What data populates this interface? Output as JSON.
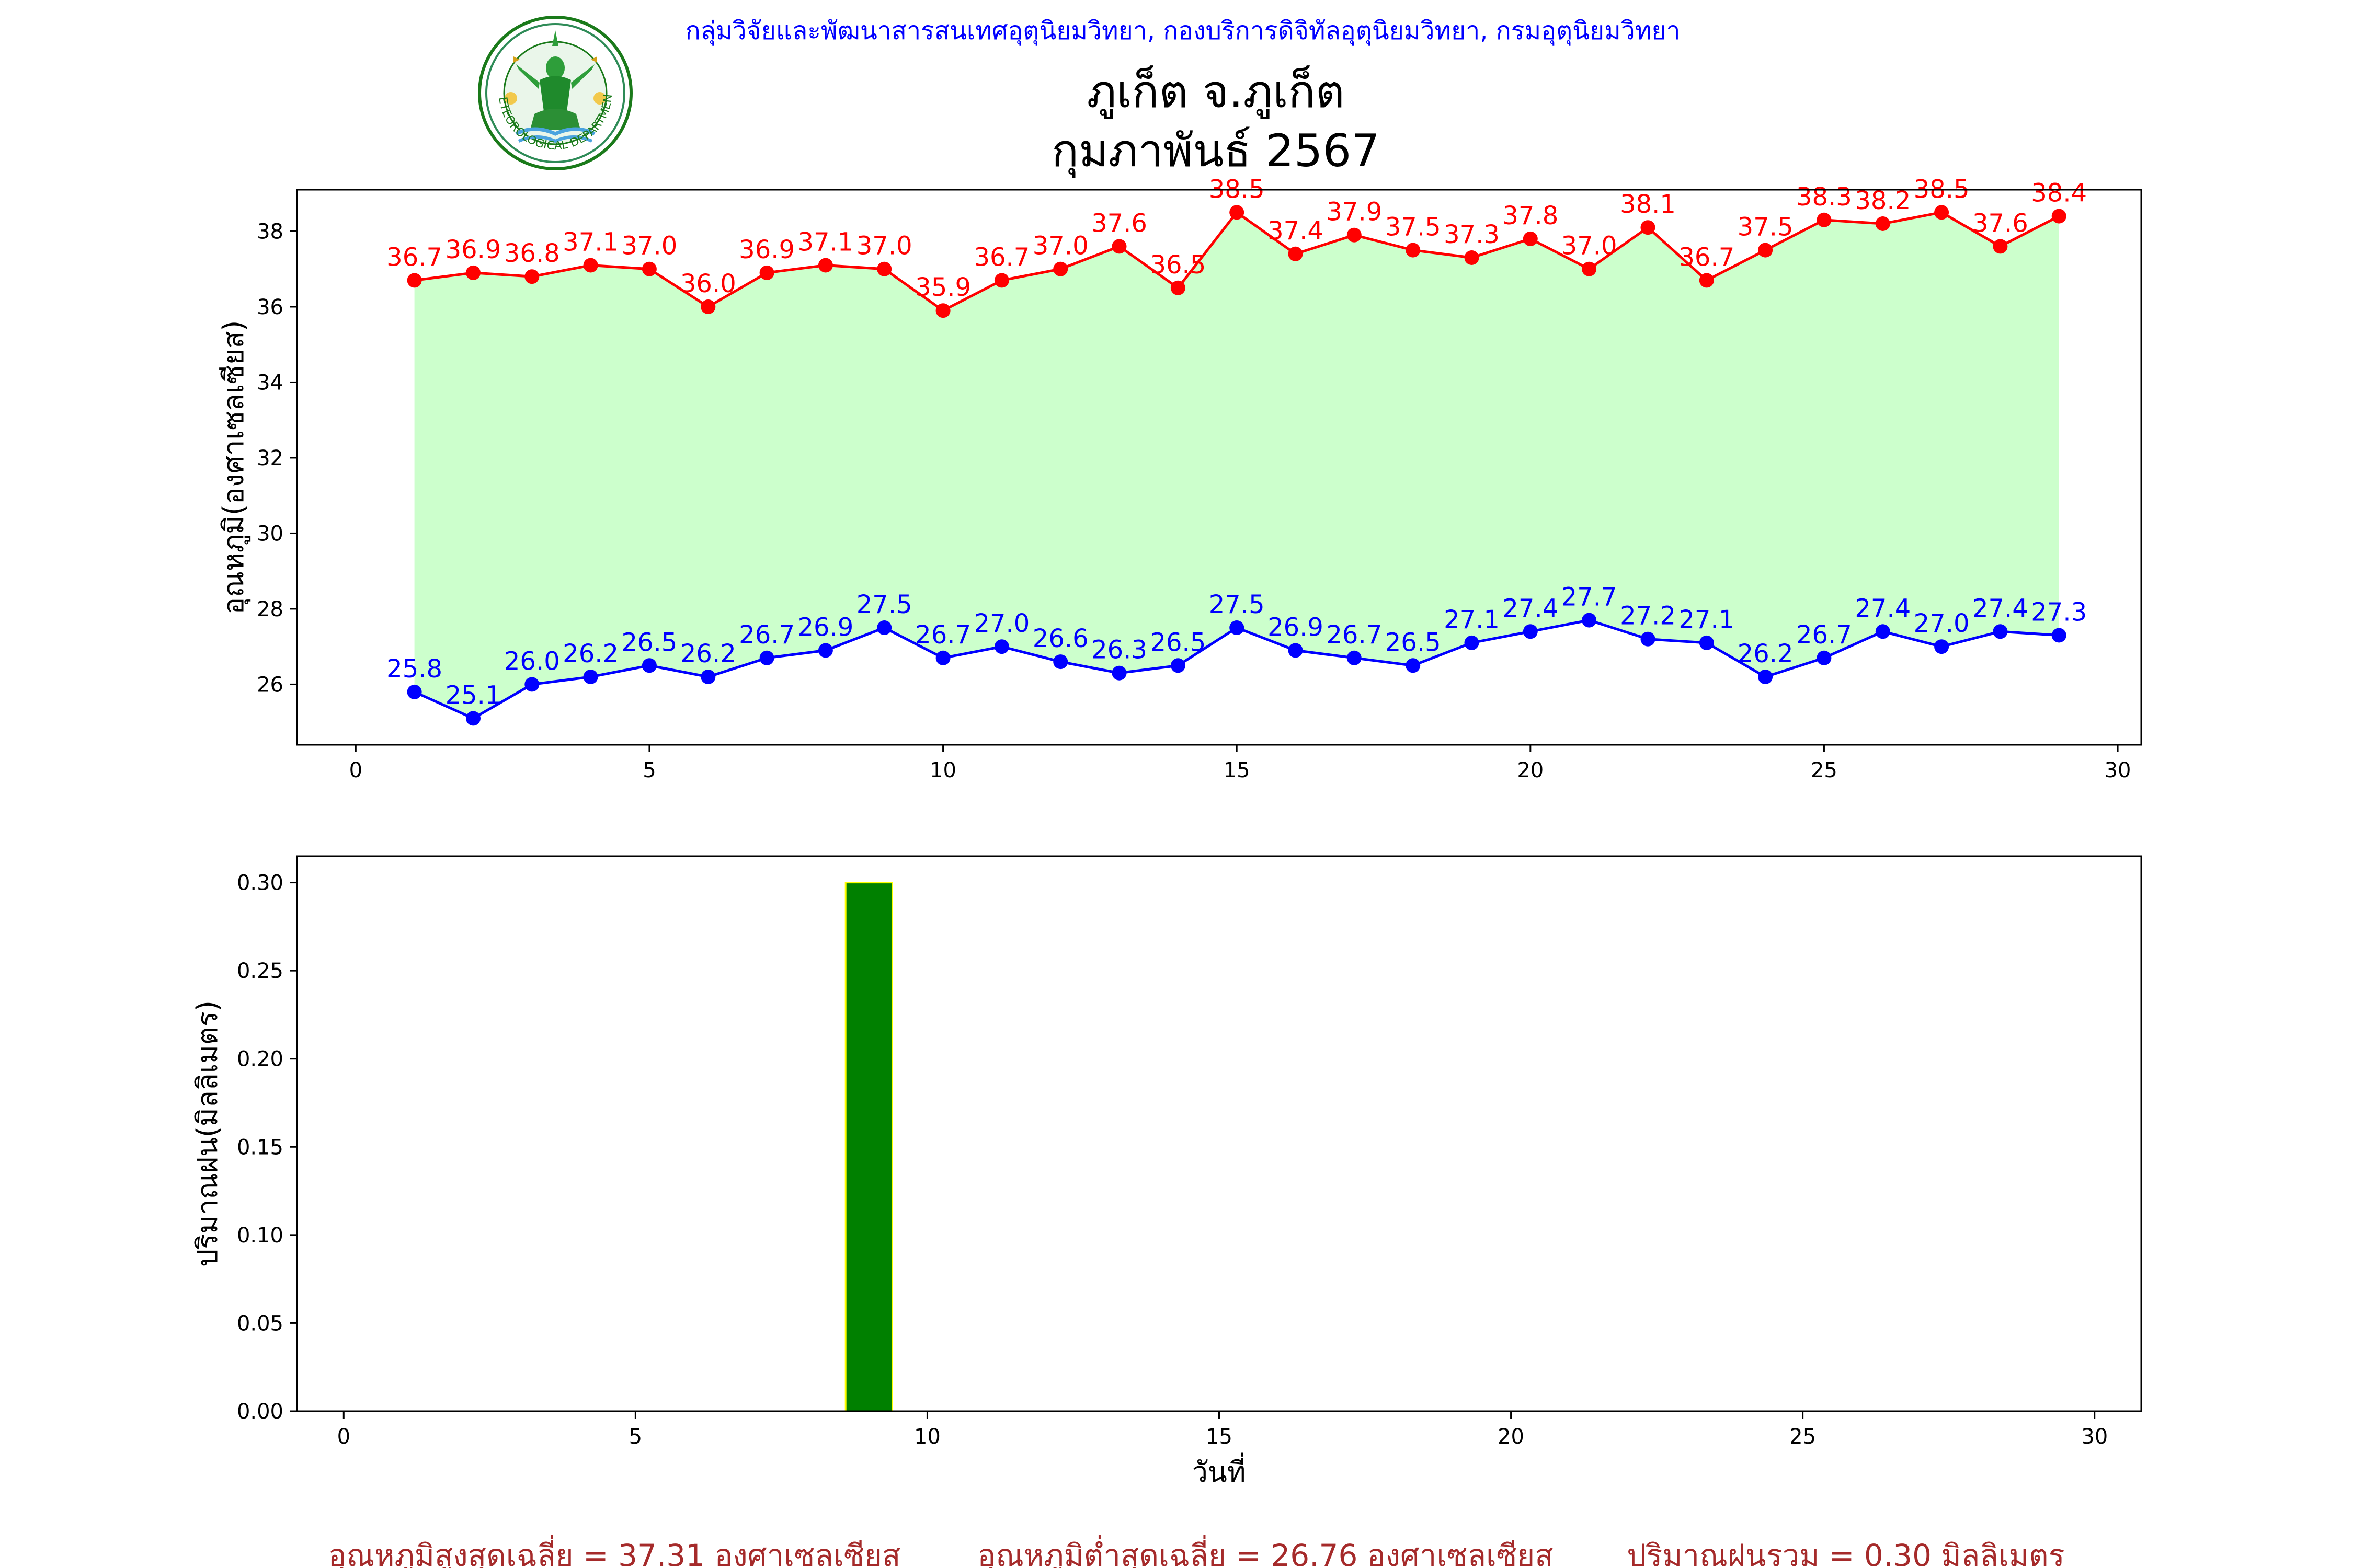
{
  "header": {
    "agency": "กลุ่มวิจัยและพัฒนาสารสนเทศอุตุนิยมวิทยา, กองบริการดิจิทัลอุตุนิยมวิทยา, กรมอุตุนิยมวิทยา",
    "station": "ภูเก็ต จ.ภูเก็ต",
    "period": "กุมภาพันธ์ 2567",
    "logo_text": "METEOROLOGICAL DEPARTMENT"
  },
  "chart_data": [
    {
      "type": "line",
      "ylabel": "อุณหภูมิ(องศาเซลเซียส)",
      "xlabel": "",
      "xlim": [
        -1,
        30.4
      ],
      "ylim": [
        24.4,
        39.1
      ],
      "xticks": [
        0,
        5,
        10,
        15,
        20,
        25,
        30
      ],
      "yticks": [
        26,
        28,
        30,
        32,
        34,
        36,
        38
      ],
      "fill_between": {
        "color": "#ccffcc"
      },
      "x": [
        1,
        2,
        3,
        4,
        5,
        6,
        7,
        8,
        9,
        10,
        11,
        12,
        13,
        14,
        15,
        16,
        17,
        18,
        19,
        20,
        21,
        22,
        23,
        24,
        25,
        26,
        27,
        28,
        29
      ],
      "series": [
        {
          "color": "#ff0000",
          "values": [
            36.7,
            36.9,
            36.8,
            37.1,
            37.0,
            36.0,
            36.9,
            37.1,
            37.0,
            35.9,
            36.7,
            37.0,
            37.6,
            36.5,
            38.5,
            37.4,
            37.9,
            37.5,
            37.3,
            37.8,
            37.0,
            38.1,
            36.7,
            37.5,
            38.3,
            38.2,
            38.5,
            37.6,
            38.4
          ]
        },
        {
          "color": "#0000ff",
          "values": [
            25.8,
            25.1,
            26.0,
            26.2,
            26.5,
            26.2,
            26.7,
            26.9,
            27.5,
            26.7,
            27.0,
            26.6,
            26.3,
            26.5,
            27.5,
            26.9,
            26.7,
            26.5,
            27.1,
            27.4,
            27.7,
            27.2,
            27.1,
            26.2,
            26.7,
            27.4,
            27.0,
            27.4,
            27.3
          ]
        }
      ],
      "grid": false
    },
    {
      "type": "bar",
      "ylabel": "ปริมาณฝน(มิลลิเมตร)",
      "xlabel": "วันที่",
      "xlim": [
        -0.8,
        30.8
      ],
      "ylim": [
        0,
        0.315
      ],
      "xticks": [
        0,
        5,
        10,
        15,
        20,
        25,
        30
      ],
      "yticks": [
        0.0,
        0.05,
        0.1,
        0.15,
        0.2,
        0.25,
        0.3
      ],
      "bar_width": 0.8,
      "bar_color": "#008000",
      "bar_edge": "#ffff00",
      "x": [
        1,
        2,
        3,
        4,
        5,
        6,
        7,
        8,
        9,
        10,
        11,
        12,
        13,
        14,
        15,
        16,
        17,
        18,
        19,
        20,
        21,
        22,
        23,
        24,
        25,
        26,
        27,
        28,
        29
      ],
      "values": [
        0,
        0,
        0,
        0,
        0,
        0,
        0,
        0,
        0.3,
        0,
        0,
        0,
        0,
        0,
        0,
        0,
        0,
        0,
        0,
        0,
        0,
        0,
        0,
        0,
        0,
        0,
        0,
        0,
        0
      ],
      "grid": false
    }
  ],
  "summary": {
    "avg_max": "อุณหภูมิสูงสุดเฉลี่ย = 37.31 องศาเซลเซียส",
    "avg_min": "อุณหภูมิต่ำสุดเฉลี่ย = 26.76 องศาเซลเซียส",
    "total_rain": "ปริมาณฝนรวม = 0.30 มิลลิเมตร"
  }
}
